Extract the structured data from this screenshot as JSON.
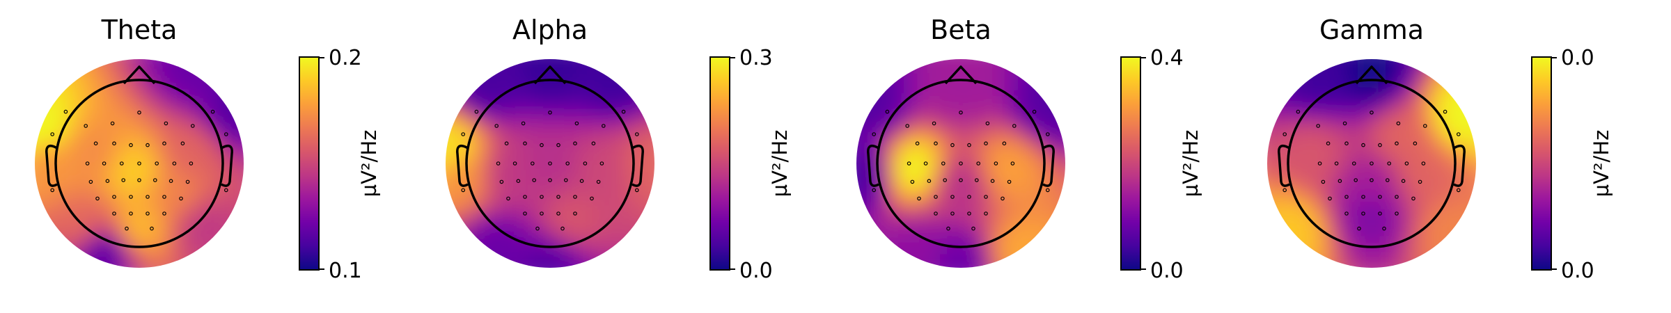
{
  "chart_data": {
    "type": "heatmap",
    "unit_label": "µV²/Hz",
    "colormap": [
      "#0d0887",
      "#46039f",
      "#7201a8",
      "#9c179e",
      "#bd3786",
      "#d8576b",
      "#ed7953",
      "#fb9f3a",
      "#fdca26",
      "#f0f921"
    ],
    "panels": [
      {
        "title": "Theta",
        "colorbar_ticks": [
          "0.2",
          "0.1"
        ],
        "range": [
          0.1,
          0.2
        ],
        "hotspots": [
          {
            "x": -0.92,
            "y": -0.35,
            "level": 1.0
          },
          {
            "x": -0.85,
            "y": 0.05,
            "level": 0.75
          },
          {
            "x": -0.05,
            "y": 0.08,
            "level": 0.9
          },
          {
            "x": 0.0,
            "y": 0.6,
            "level": 0.85
          },
          {
            "x": -0.45,
            "y": -0.1,
            "level": 0.72
          },
          {
            "x": 0.35,
            "y": 0.3,
            "level": 0.7
          },
          {
            "x": 0.5,
            "y": -0.1,
            "level": 0.6
          },
          {
            "x": -0.55,
            "y": 0.6,
            "level": 0.62
          },
          {
            "x": 0.6,
            "y": 0.6,
            "level": 0.45
          },
          {
            "x": 0.9,
            "y": -0.5,
            "level": 0.15
          },
          {
            "x": 0.55,
            "y": -0.9,
            "level": 0.2
          },
          {
            "x": -0.35,
            "y": 0.85,
            "level": 0.15
          }
        ]
      },
      {
        "title": "Alpha",
        "colorbar_ticks": [
          "0.3",
          "0.0"
        ],
        "range": [
          0.0,
          0.3
        ],
        "hotspots": [
          {
            "x": -0.95,
            "y": -0.15,
            "level": 0.95
          },
          {
            "x": -0.85,
            "y": 0.15,
            "level": 0.75
          },
          {
            "x": 0.0,
            "y": -0.9,
            "level": 0.08
          },
          {
            "x": -0.6,
            "y": -0.75,
            "level": 0.12
          },
          {
            "x": 0.6,
            "y": -0.8,
            "level": 0.1
          },
          {
            "x": 0.0,
            "y": 0.0,
            "level": 0.42
          },
          {
            "x": -0.4,
            "y": 0.1,
            "level": 0.45
          },
          {
            "x": 0.5,
            "y": 0.05,
            "level": 0.5
          },
          {
            "x": 0.95,
            "y": 0.0,
            "level": 0.6
          },
          {
            "x": 0.2,
            "y": 0.55,
            "level": 0.55
          },
          {
            "x": 0.0,
            "y": 0.95,
            "level": 0.15
          },
          {
            "x": -0.5,
            "y": 0.8,
            "level": 0.2
          }
        ]
      },
      {
        "title": "Beta",
        "colorbar_ticks": [
          "0.4",
          "0.0"
        ],
        "range": [
          0.0,
          0.4
        ],
        "hotspots": [
          {
            "x": -0.45,
            "y": 0.05,
            "level": 1.0
          },
          {
            "x": 0.45,
            "y": 0.05,
            "level": 0.78
          },
          {
            "x": 0.55,
            "y": 0.85,
            "level": 0.8
          },
          {
            "x": -0.4,
            "y": 0.85,
            "level": 0.3
          },
          {
            "x": 0.0,
            "y": -0.7,
            "level": 0.35
          },
          {
            "x": -0.85,
            "y": -0.55,
            "level": 0.15
          },
          {
            "x": 0.85,
            "y": -0.55,
            "level": 0.15
          },
          {
            "x": 0.0,
            "y": 0.2,
            "level": 0.42
          },
          {
            "x": 0.0,
            "y": 0.95,
            "level": 0.2
          },
          {
            "x": -0.95,
            "y": 0.1,
            "level": 0.12
          }
        ]
      },
      {
        "title": "Gamma",
        "colorbar_ticks": [
          "0.0",
          "0.0"
        ],
        "range": [
          0.0,
          0.0
        ],
        "hotspots": [
          {
            "x": 0.85,
            "y": -0.45,
            "level": 1.0
          },
          {
            "x": 0.3,
            "y": -0.25,
            "level": 0.6
          },
          {
            "x": -0.75,
            "y": 0.65,
            "level": 0.88
          },
          {
            "x": 0.75,
            "y": 0.65,
            "level": 0.7
          },
          {
            "x": -0.55,
            "y": -0.1,
            "level": 0.55
          },
          {
            "x": 0.5,
            "y": 0.1,
            "level": 0.6
          },
          {
            "x": 0.0,
            "y": -0.85,
            "level": 0.02
          },
          {
            "x": -0.5,
            "y": -0.8,
            "level": 0.1
          },
          {
            "x": 0.0,
            "y": 0.2,
            "level": 0.35
          },
          {
            "x": 0.0,
            "y": 0.5,
            "level": 0.25
          }
        ]
      }
    ]
  }
}
